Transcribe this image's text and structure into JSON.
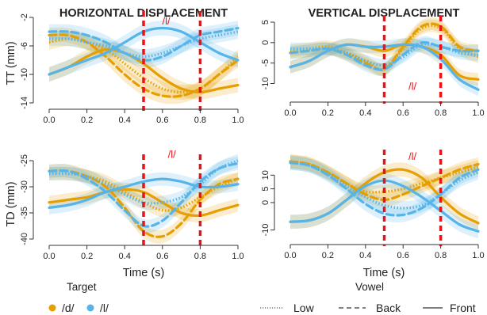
{
  "figure": {
    "row_labels": [
      "TT (mm)",
      "TD (mm)"
    ],
    "xlabel": "Time (s)",
    "legend": {
      "target_title": "Target",
      "target_items": [
        {
          "label": "/d/",
          "color": "#E69F00"
        },
        {
          "label": "/l/",
          "color": "#56B4E9"
        }
      ],
      "vowel_title": "Vowel",
      "vowel_items": [
        {
          "label": "Low",
          "linestyle": "dotted"
        },
        {
          "label": "Back",
          "linestyle": "dashed"
        },
        {
          "label": "Front",
          "linestyle": "solid"
        }
      ]
    }
  },
  "chart_data": [
    {
      "type": "line",
      "title": "HORIZONTAL DISPLACEMENT",
      "ylabel": "TT (mm)",
      "xlabel": "",
      "xlim": [
        0,
        1
      ],
      "ylim": [
        -14,
        -2
      ],
      "xticks": [
        "0.0",
        "0.2",
        "0.4",
        "0.6",
        "0.8",
        "1.0"
      ],
      "yticks": [
        "-14",
        "-10",
        "-6",
        "-2"
      ],
      "vlines": [
        0.5,
        0.8
      ],
      "annotation": {
        "text": "/l/",
        "x": 0.62,
        "y": -3
      },
      "x": [
        0.0,
        0.1,
        0.2,
        0.3,
        0.4,
        0.5,
        0.6,
        0.7,
        0.8,
        0.9,
        1.0
      ],
      "series": [
        {
          "target": "/d/",
          "vowel": "Low",
          "values": [
            -5.5,
            -5,
            -5.5,
            -6.5,
            -8.5,
            -10.5,
            -12,
            -12.5,
            -12,
            -10,
            -7.5
          ]
        },
        {
          "target": "/d/",
          "vowel": "Back",
          "values": [
            -4.5,
            -4.5,
            -5.5,
            -7.5,
            -10,
            -12,
            -13,
            -13,
            -12,
            -10,
            -8
          ]
        },
        {
          "target": "/d/",
          "vowel": "Front",
          "values": [
            -10,
            -9,
            -7.5,
            -6.5,
            -7,
            -8.5,
            -10.5,
            -12,
            -12.5,
            -12,
            -11.5
          ]
        },
        {
          "target": "/l/",
          "vowel": "Low",
          "values": [
            -5,
            -5,
            -5.5,
            -6,
            -7,
            -7.5,
            -7,
            -6,
            -5,
            -4.5,
            -4
          ]
        },
        {
          "target": "/l/",
          "vowel": "Back",
          "values": [
            -4,
            -4,
            -4.5,
            -5.5,
            -7,
            -8,
            -7.5,
            -6,
            -4.5,
            -4,
            -3.5
          ]
        },
        {
          "target": "/l/",
          "vowel": "Front",
          "values": [
            -10,
            -9,
            -8,
            -7,
            -5.5,
            -4,
            -3.5,
            -4,
            -5.5,
            -7,
            -8
          ]
        }
      ]
    },
    {
      "type": "line",
      "title": "VERTICAL DISPLACEMENT",
      "ylabel": "",
      "xlabel": "",
      "xlim": [
        0,
        1
      ],
      "ylim": [
        -13,
        5
      ],
      "xticks": [
        "0.0",
        "0.2",
        "0.4",
        "0.6",
        "0.8",
        "1.0"
      ],
      "yticks": [
        "-10",
        "-5",
        "0",
        "5"
      ],
      "vlines": [
        0.5,
        0.8
      ],
      "annotation": {
        "text": "/l/",
        "x": 0.65,
        "y": -11.5
      },
      "x": [
        0.0,
        0.1,
        0.2,
        0.3,
        0.4,
        0.5,
        0.6,
        0.7,
        0.8,
        0.9,
        1.0
      ],
      "series": [
        {
          "target": "/d/",
          "vowel": "Low",
          "values": [
            -2,
            -1.5,
            -1,
            -2.5,
            -4.5,
            -6.5,
            -1.5,
            3.5,
            3.5,
            -1.5,
            -3.5
          ]
        },
        {
          "target": "/d/",
          "vowel": "Back",
          "values": [
            -2.5,
            -2,
            -1.5,
            -3,
            -5,
            -6.5,
            -1,
            4,
            4,
            -1,
            -2
          ]
        },
        {
          "target": "/d/",
          "vowel": "Front",
          "values": [
            -6,
            -4.5,
            -2,
            -0.5,
            -1,
            -2,
            -0.5,
            -1,
            -3,
            -8,
            -9
          ]
        },
        {
          "target": "/l/",
          "vowel": "Low",
          "values": [
            -1.5,
            -1.5,
            -1.5,
            -2.5,
            -4.5,
            -5.5,
            -3.5,
            -0.5,
            -1,
            -2.5,
            -3
          ]
        },
        {
          "target": "/l/",
          "vowel": "Back",
          "values": [
            -2.5,
            -2,
            -1.5,
            -3,
            -5.5,
            -6.5,
            -3,
            0,
            -1,
            -2,
            -2
          ]
        },
        {
          "target": "/l/",
          "vowel": "Front",
          "values": [
            -6,
            -4.5,
            -2,
            -0.5,
            -1,
            -1,
            -0.5,
            -1,
            -4,
            -9,
            -11.5
          ]
        }
      ]
    },
    {
      "type": "line",
      "title": "",
      "ylabel": "TD (mm)",
      "xlabel": "Time (s)",
      "xlim": [
        0,
        1
      ],
      "ylim": [
        -40,
        -25
      ],
      "xticks": [
        "0.0",
        "0.2",
        "0.4",
        "0.6",
        "0.8",
        "1.0"
      ],
      "yticks": [
        "-40",
        "-35",
        "-30",
        "-25"
      ],
      "vlines": [
        0.5,
        0.8
      ],
      "annotation": {
        "text": "/l/",
        "x": 0.65,
        "y": -24.5
      },
      "x": [
        0.0,
        0.1,
        0.2,
        0.3,
        0.4,
        0.5,
        0.6,
        0.7,
        0.8,
        0.9,
        1.0
      ],
      "series": [
        {
          "target": "/d/",
          "vowel": "Low",
          "values": [
            -27.5,
            -27.5,
            -28,
            -29,
            -31,
            -33,
            -34.5,
            -34,
            -32,
            -30,
            -28.5
          ]
        },
        {
          "target": "/d/",
          "vowel": "Back",
          "values": [
            -27,
            -27,
            -28,
            -30,
            -34,
            -38.5,
            -39.5,
            -37,
            -32.5,
            -29.5,
            -28.5
          ]
        },
        {
          "target": "/d/",
          "vowel": "Front",
          "values": [
            -33,
            -32.5,
            -32,
            -31,
            -30.5,
            -31,
            -33,
            -35,
            -35.5,
            -34.5,
            -33.5
          ]
        },
        {
          "target": "/l/",
          "vowel": "Low",
          "values": [
            -27.5,
            -27.5,
            -28,
            -29.5,
            -31.5,
            -33,
            -33,
            -32,
            -29.5,
            -26.5,
            -25
          ]
        },
        {
          "target": "/l/",
          "vowel": "Back",
          "values": [
            -27,
            -27,
            -28.5,
            -31,
            -34.5,
            -37.5,
            -36.5,
            -33,
            -29,
            -26.5,
            -25.5
          ]
        },
        {
          "target": "/l/",
          "vowel": "Front",
          "values": [
            -34,
            -33.5,
            -32.5,
            -31,
            -30,
            -29,
            -28.5,
            -29,
            -30,
            -30,
            -29.5
          ]
        }
      ]
    },
    {
      "type": "line",
      "title": "",
      "ylabel": "",
      "xlabel": "Time (s)",
      "xlim": [
        0,
        1
      ],
      "ylim": [
        -13,
        17
      ],
      "xticks": [
        "0.0",
        "0.2",
        "0.4",
        "0.6",
        "0.8",
        "1.0"
      ],
      "yticks": [
        "-10",
        "0",
        "5",
        "10"
      ],
      "vlines": [
        0.5,
        0.8
      ],
      "annotation": {
        "text": "/l/",
        "x": 0.65,
        "y": 15.5
      },
      "x": [
        0.0,
        0.1,
        0.2,
        0.3,
        0.4,
        0.5,
        0.6,
        0.7,
        0.8,
        0.9,
        1.0
      ],
      "series": [
        {
          "target": "/d/",
          "vowel": "Low",
          "values": [
            15,
            14,
            11,
            7,
            4,
            4,
            5,
            7,
            9,
            11,
            13
          ]
        },
        {
          "target": "/d/",
          "vowel": "Back",
          "values": [
            15,
            14,
            11,
            7,
            3,
            1,
            3,
            6,
            9,
            12,
            14
          ]
        },
        {
          "target": "/d/",
          "vowel": "Front",
          "values": [
            -7,
            -6.5,
            -4,
            1,
            7,
            11,
            12,
            9,
            2,
            -4,
            -7.5
          ]
        },
        {
          "target": "/l/",
          "vowel": "Low",
          "values": [
            14.5,
            13.5,
            10.5,
            6,
            2,
            -1,
            -2,
            -1,
            3,
            8,
            11
          ]
        },
        {
          "target": "/l/",
          "vowel": "Back",
          "values": [
            14.5,
            13.5,
            10,
            5,
            -0.5,
            -4,
            -4.5,
            -2,
            3,
            9,
            12
          ]
        },
        {
          "target": "/l/",
          "vowel": "Front",
          "values": [
            -7,
            -6.5,
            -4,
            1,
            6,
            8,
            6,
            2,
            -3,
            -8,
            -10.5
          ]
        }
      ]
    }
  ]
}
